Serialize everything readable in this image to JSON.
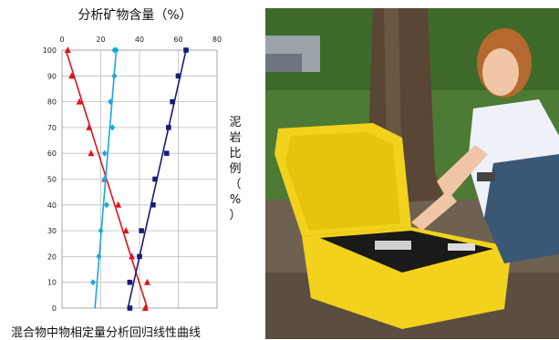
{
  "chart_data": {
    "type": "line",
    "title": "分析矿物含量（%）",
    "ylabel": "泥岩比例（%）",
    "caption": "混合物中物相定量分析回归线性曲线",
    "xlim": [
      0,
      80
    ],
    "ylim": [
      0,
      100
    ],
    "xticks": [
      0,
      20,
      40,
      60,
      80
    ],
    "yticks": [
      0,
      10,
      20,
      30,
      40,
      50,
      60,
      70,
      80,
      90,
      100
    ],
    "grid": true,
    "series": [
      {
        "color": "#e0101e",
        "marker": "triangle",
        "points": [
          [
            43,
            0
          ],
          [
            44,
            10
          ],
          [
            36,
            20
          ],
          [
            33,
            30
          ],
          [
            29,
            40
          ],
          [
            22,
            50
          ],
          [
            15,
            60
          ],
          [
            14,
            70
          ],
          [
            9,
            80
          ],
          [
            5,
            90
          ],
          [
            3,
            100
          ]
        ],
        "line": [
          [
            44,
            0
          ],
          [
            2,
            100
          ]
        ]
      },
      {
        "color": "#1aa6e0",
        "marker": "diamond",
        "points": [
          [
            16,
            10
          ],
          [
            19,
            20
          ],
          [
            20,
            30
          ],
          [
            23,
            40
          ],
          [
            22,
            50
          ],
          [
            22,
            60
          ],
          [
            26,
            70
          ],
          [
            25,
            80
          ],
          [
            27,
            90
          ],
          [
            27,
            100
          ],
          [
            28,
            100
          ]
        ],
        "line": [
          [
            17,
            0
          ],
          [
            28,
            100
          ]
        ]
      },
      {
        "color": "#1a1a7a",
        "marker": "square",
        "points": [
          [
            35,
            0
          ],
          [
            35,
            10
          ],
          [
            40,
            20
          ],
          [
            41,
            30
          ],
          [
            47,
            40
          ],
          [
            48,
            50
          ],
          [
            54,
            60
          ],
          [
            55,
            70
          ],
          [
            57,
            80
          ],
          [
            60,
            90
          ],
          [
            64,
            100
          ]
        ],
        "line": [
          [
            34,
            0
          ],
          [
            64,
            100
          ]
        ]
      }
    ]
  },
  "photo": {
    "colors": {
      "case": "#f2d21c",
      "panel": "#1a1a1a",
      "tree": "#5a4634",
      "foliage": "#5e8a3a",
      "ground": "#6f6150"
    }
  }
}
